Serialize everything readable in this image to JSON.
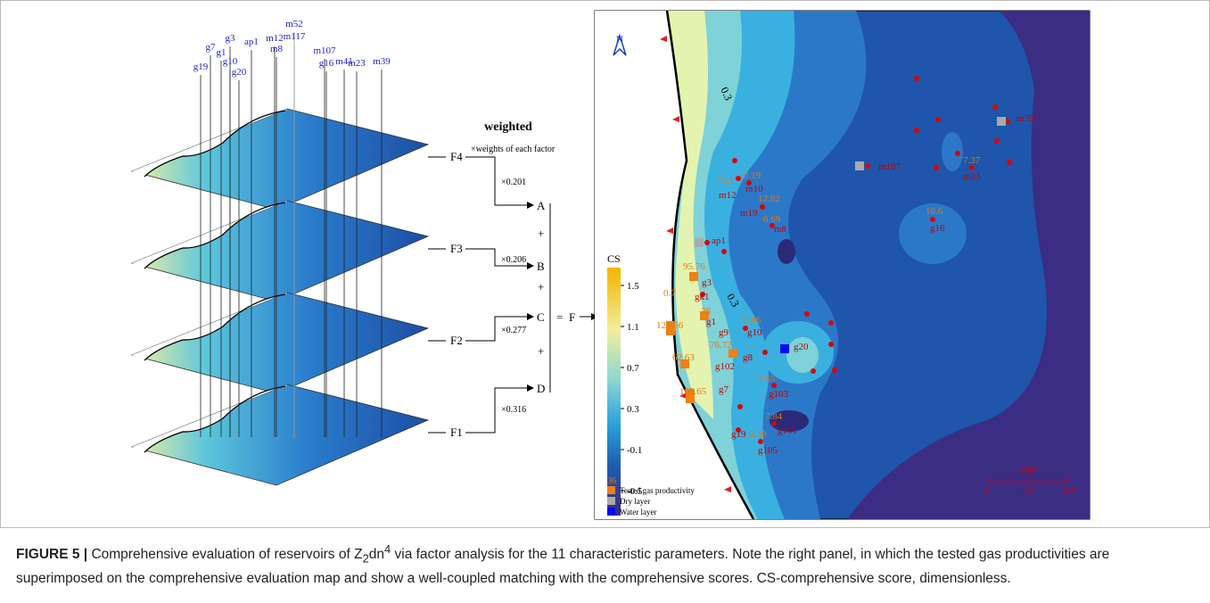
{
  "left_panel": {
    "well_labels": [
      "g19",
      "g7",
      "g1",
      "g3",
      "g10",
      "g20",
      "ap1",
      "m12",
      "m8",
      "m52",
      "m117",
      "m107",
      "g16",
      "m41",
      "m23",
      "m39"
    ],
    "layers": [
      "F4",
      "F3",
      "F2",
      "F1"
    ]
  },
  "flow": {
    "title": "weighted",
    "note": "×weights of each factor",
    "weights": [
      "×0.201",
      "×0.206",
      "×0.277",
      "×0.316"
    ],
    "nodes": [
      "A",
      "B",
      "C",
      "D"
    ],
    "operators": [
      "+",
      "+",
      "+"
    ],
    "equals": "=",
    "result": "F"
  },
  "map": {
    "north": "N",
    "contour_labels": [
      "0.3",
      "0.3"
    ],
    "legend_title": "CS",
    "legend_ticks": [
      "1.5",
      "1.1",
      "0.7",
      "0.3",
      "-0.1",
      "-0.5"
    ],
    "wells": [
      {
        "name": "m39"
      },
      {
        "name": "m107"
      },
      {
        "name": "m23",
        "value": "7.37"
      },
      {
        "name": "g16",
        "value": "10.6"
      },
      {
        "name": "m12",
        "value": "7.21"
      },
      {
        "name": "m10",
        "value": "0.19"
      },
      {
        "name": "m19",
        "value": "12.82"
      },
      {
        "name": "m8",
        "value": "6.69"
      },
      {
        "name": "ap1"
      },
      {
        "name": "g3",
        "value": "95.76"
      },
      {
        "name": "gk1",
        "value": "0.7"
      },
      {
        "name": "g1",
        "value": "36"
      },
      {
        "name": "g10",
        "value": "6.06"
      },
      {
        "name": "g9",
        "value": "126.66"
      },
      {
        "name": "g8",
        "value": "76.72"
      },
      {
        "name": "g20"
      },
      {
        "name": "g102",
        "value": "62.63"
      },
      {
        "name": "g103",
        "value": "5.55"
      },
      {
        "name": "g7",
        "value": "105.65"
      },
      {
        "name": "g101",
        "value": "7.84"
      },
      {
        "name": "g19"
      },
      {
        "name": "g105",
        "value": "2.39"
      }
    ],
    "key": {
      "sample": "36",
      "items": [
        "Tested gas productivity",
        "Dry layer",
        "Water layer"
      ]
    },
    "scale": {
      "unit": "KM",
      "ticks": [
        "0",
        "10",
        "20"
      ]
    }
  },
  "caption": {
    "label": "FIGURE 5 |",
    "text_1": " Comprehensive evaluation of reservoirs of Z",
    "sub": "2",
    "text_2": "dn",
    "sup": "4",
    "text_3": " via factor analysis for the 11 characteristic parameters. Note the right panel, in which the tested gas productivities are superimposed on the comprehensive evaluation map and show a well-coupled matching with the comprehensive scores. CS-comprehensive score, dimensionless."
  }
}
